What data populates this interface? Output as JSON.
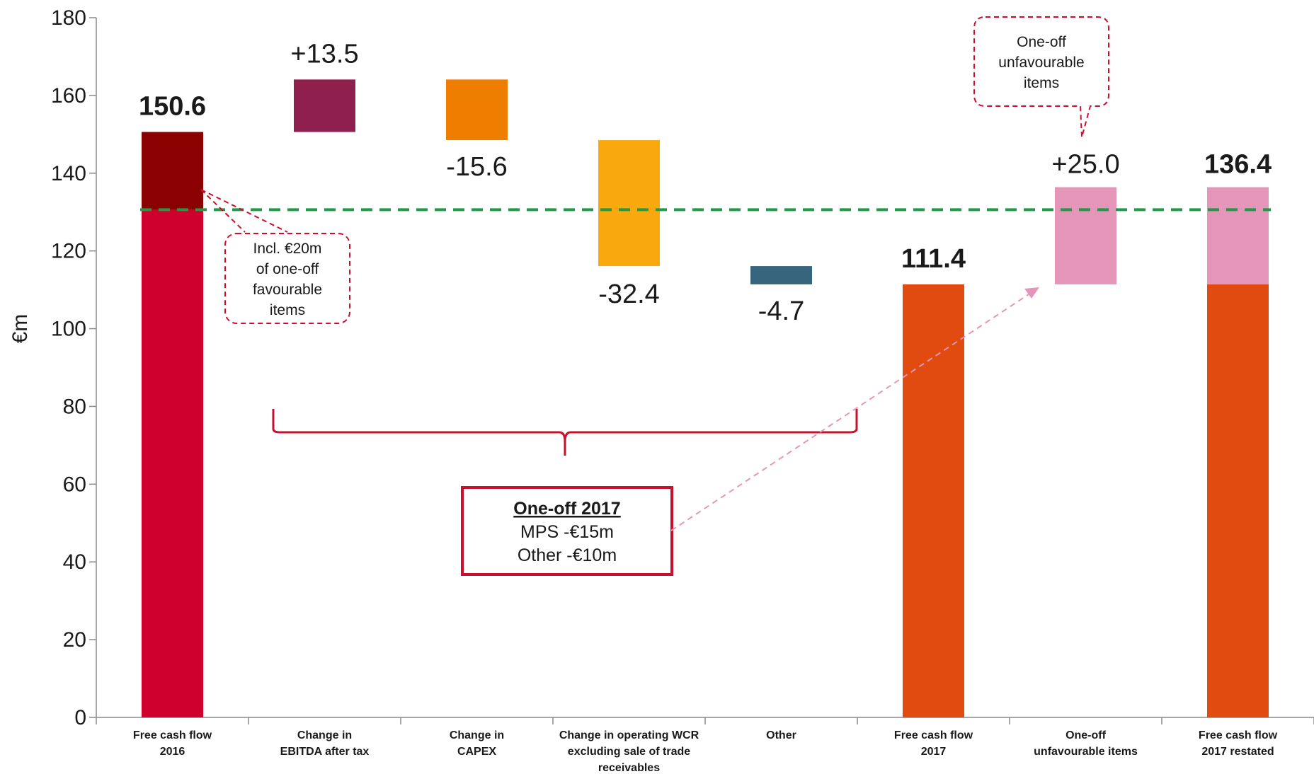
{
  "chart_data": {
    "type": "bar",
    "ylabel": "€m",
    "ylim": [
      0,
      180
    ],
    "yticks": [
      0,
      20,
      40,
      60,
      80,
      100,
      120,
      140,
      160,
      180
    ],
    "categories": [
      [
        "Free cash flow",
        "2016"
      ],
      [
        "Change in",
        "EBITDA after tax"
      ],
      [
        "Change in",
        "CAPEX"
      ],
      [
        "Change in operating WCR",
        "excluding sale of trade",
        "receivables"
      ],
      [
        "Other"
      ],
      [
        "Free cash flow",
        "2017"
      ],
      [
        "One-off",
        "unfavourable items"
      ],
      [
        "Free cash flow",
        "2017 restated"
      ]
    ],
    "bars": [
      {
        "segments": [
          {
            "from": 0,
            "to": 130.6,
            "color": "#d0002e"
          },
          {
            "from": 130.6,
            "to": 150.6,
            "color": "#8b0000"
          }
        ],
        "label": "150.6",
        "bold": true
      },
      {
        "segments": [
          {
            "from": 150.6,
            "to": 164.1,
            "color": "#8e1f4e"
          }
        ],
        "label": "+13.5",
        "bold": false
      },
      {
        "segments": [
          {
            "from": 148.5,
            "to": 164.1,
            "color": "#ef7d00"
          }
        ],
        "label": "-15.6",
        "bold": false
      },
      {
        "segments": [
          {
            "from": 116.1,
            "to": 148.5,
            "color": "#f9a90e"
          }
        ],
        "label": "-32.4",
        "bold": false
      },
      {
        "segments": [
          {
            "from": 111.4,
            "to": 116.1,
            "color": "#37657d"
          }
        ],
        "label": "-4.7",
        "bold": false
      },
      {
        "segments": [
          {
            "from": 0,
            "to": 111.4,
            "color": "#e14b10"
          }
        ],
        "label": "111.4",
        "bold": true
      },
      {
        "segments": [
          {
            "from": 111.4,
            "to": 136.4,
            "color": "#e596b8"
          }
        ],
        "label": "+25.0",
        "bold": false
      },
      {
        "segments": [
          {
            "from": 0,
            "to": 111.4,
            "color": "#e14b10"
          },
          {
            "from": 111.4,
            "to": 136.4,
            "color": "#e596b8"
          }
        ],
        "label": "136.4",
        "bold": true
      }
    ],
    "reference_line": {
      "value": 130.6,
      "color": "#1f9a48",
      "style": "dashed"
    },
    "annotations": {
      "favourable_note": [
        "Incl. €20m",
        "of one-off",
        "favourable",
        "items"
      ],
      "unfavourable_note": [
        "One-off",
        "unfavourable",
        "items"
      ],
      "one_off_box": {
        "title": "One-off 2017",
        "lines": [
          "MPS -€15m",
          "Other -€10m"
        ]
      }
    }
  },
  "colors": {
    "accent_red": "#c8102e",
    "ref_green": "#1f9a48",
    "arrow_pink": "#e596b8"
  }
}
